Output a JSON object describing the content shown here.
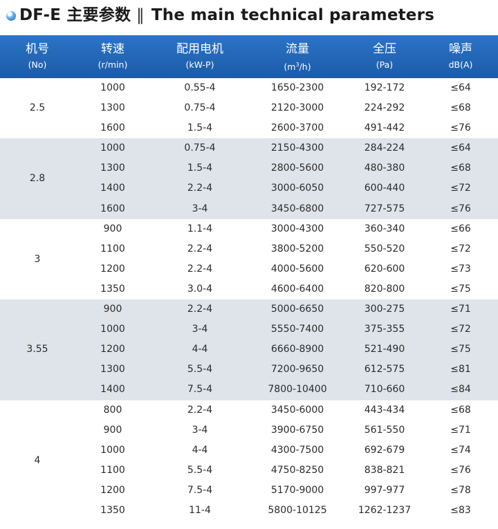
{
  "title": {
    "cn": "DF-E 主要参数",
    "sep": "‖",
    "en": "The main technical parameters"
  },
  "header": {
    "model": {
      "label": "机号",
      "unit": "(No)"
    },
    "speed": {
      "label": "转速",
      "unit": "(r/min)"
    },
    "motor": {
      "label": "配用电机",
      "unit": "(kW-P)"
    },
    "flow": {
      "label": "流量",
      "unit_pre": "(m",
      "unit_sup": "3",
      "unit_post": "/h)"
    },
    "pressure": {
      "label": "全压",
      "unit": "(Pa)"
    },
    "noise": {
      "label": "噪声",
      "unit": "dB(A)"
    }
  },
  "groups": [
    {
      "model": "2.5",
      "shaded": false,
      "rows": [
        {
          "speed": "1000",
          "motor": "0.55-4",
          "flow": "1650-2300",
          "pressure": "192-172",
          "noise": "≤64"
        },
        {
          "speed": "1300",
          "motor": "0.75-4",
          "flow": "2120-3000",
          "pressure": "224-292",
          "noise": "≤68"
        },
        {
          "speed": "1600",
          "motor": "1.5-4",
          "flow": "2600-3700",
          "pressure": "491-442",
          "noise": "≤76"
        }
      ]
    },
    {
      "model": "2.8",
      "shaded": true,
      "rows": [
        {
          "speed": "1000",
          "motor": "0.75-4",
          "flow": "2150-4300",
          "pressure": "284-224",
          "noise": "≤64"
        },
        {
          "speed": "1300",
          "motor": "1.5-4",
          "flow": "2800-5600",
          "pressure": "480-380",
          "noise": "≤68"
        },
        {
          "speed": "1400",
          "motor": "2.2-4",
          "flow": "3000-6050",
          "pressure": "600-440",
          "noise": "≤72"
        },
        {
          "speed": "1600",
          "motor": "3-4",
          "flow": "3450-6800",
          "pressure": "727-575",
          "noise": "≤76"
        }
      ]
    },
    {
      "model": "3",
      "shaded": false,
      "rows": [
        {
          "speed": "900",
          "motor": "1.1-4",
          "flow": "3000-4300",
          "pressure": "360-340",
          "noise": "≤66"
        },
        {
          "speed": "1100",
          "motor": "2.2-4",
          "flow": "3800-5200",
          "pressure": "550-520",
          "noise": "≤72"
        },
        {
          "speed": "1200",
          "motor": "2.2-4",
          "flow": "4000-5600",
          "pressure": "620-600",
          "noise": "≤73"
        },
        {
          "speed": "1350",
          "motor": "3.0-4",
          "flow": "4600-6400",
          "pressure": "820-800",
          "noise": "≤75"
        }
      ]
    },
    {
      "model": "3.55",
      "shaded": true,
      "rows": [
        {
          "speed": "900",
          "motor": "2.2-4",
          "flow": "5000-6650",
          "pressure": "300-275",
          "noise": "≤71"
        },
        {
          "speed": "1000",
          "motor": "3-4",
          "flow": "5550-7400",
          "pressure": "375-355",
          "noise": "≤72"
        },
        {
          "speed": "1200",
          "motor": "4-4",
          "flow": "6660-8900",
          "pressure": "521-490",
          "noise": "≤75"
        },
        {
          "speed": "1300",
          "motor": "5.5-4",
          "flow": "7200-9650",
          "pressure": "612-575",
          "noise": "≤81"
        },
        {
          "speed": "1400",
          "motor": "7.5-4",
          "flow": "7800-10400",
          "pressure": "710-660",
          "noise": "≤84"
        }
      ]
    },
    {
      "model": "4",
      "shaded": false,
      "rows": [
        {
          "speed": "800",
          "motor": "2.2-4",
          "flow": "3450-6000",
          "pressure": "443-434",
          "noise": "≤68"
        },
        {
          "speed": "900",
          "motor": "3-4",
          "flow": "3900-6750",
          "pressure": "561-550",
          "noise": "≤71"
        },
        {
          "speed": "1000",
          "motor": "4-4",
          "flow": "4300-7500",
          "pressure": "692-679",
          "noise": "≤74"
        },
        {
          "speed": "1100",
          "motor": "5.5-4",
          "flow": "4750-8250",
          "pressure": "838-821",
          "noise": "≤76"
        },
        {
          "speed": "1200",
          "motor": "7.5-4",
          "flow": "5170-9000",
          "pressure": "997-977",
          "noise": "≤78"
        },
        {
          "speed": "1350",
          "motor": "11-4",
          "flow": "5800-10125",
          "pressure": "1262-1237",
          "noise": "≤83"
        }
      ]
    }
  ]
}
